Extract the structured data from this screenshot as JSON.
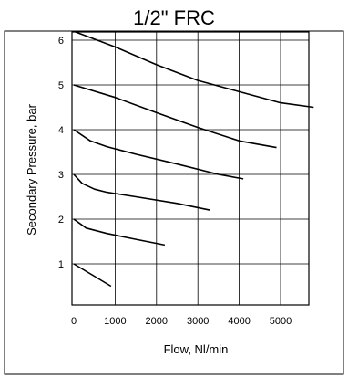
{
  "chart_data": {
    "type": "line",
    "title": "1/2\" FRC",
    "xlabel": "Flow, Nl/min",
    "ylabel": "Secondary Pressure, bar",
    "xlim": [
      0,
      6000
    ],
    "ylim": [
      0.5,
      6.2
    ],
    "x_ticks": [
      "0",
      "1000",
      "2000",
      "3000",
      "4000",
      "5000"
    ],
    "y_ticks": [
      "1",
      "2",
      "3",
      "4",
      "5",
      "6"
    ],
    "x_tick_values": [
      0,
      1000,
      2000,
      3000,
      4000,
      5000
    ],
    "y_tick_values": [
      1,
      2,
      3,
      4,
      5,
      6
    ],
    "grid": true,
    "series": [
      {
        "values": [
          [
            0,
            1.0
          ],
          [
            900,
            0.5
          ]
        ]
      },
      {
        "values": [
          [
            0,
            2.0
          ],
          [
            300,
            1.8
          ],
          [
            800,
            1.68
          ],
          [
            1500,
            1.55
          ],
          [
            2200,
            1.42
          ]
        ]
      },
      {
        "values": [
          [
            0,
            3.0
          ],
          [
            200,
            2.8
          ],
          [
            500,
            2.67
          ],
          [
            800,
            2.6
          ],
          [
            1500,
            2.5
          ],
          [
            2500,
            2.35
          ],
          [
            3300,
            2.2
          ]
        ]
      },
      {
        "values": [
          [
            0,
            4.0
          ],
          [
            400,
            3.75
          ],
          [
            800,
            3.62
          ],
          [
            1500,
            3.45
          ],
          [
            2500,
            3.23
          ],
          [
            3500,
            3.0
          ],
          [
            4100,
            2.9
          ]
        ]
      },
      {
        "values": [
          [
            0,
            5.0
          ],
          [
            1000,
            4.72
          ],
          [
            2000,
            4.38
          ],
          [
            3000,
            4.05
          ],
          [
            4000,
            3.75
          ],
          [
            4900,
            3.6
          ]
        ]
      },
      {
        "values": [
          [
            0,
            6.2
          ],
          [
            1000,
            5.85
          ],
          [
            2000,
            5.45
          ],
          [
            3000,
            5.1
          ],
          [
            4000,
            4.85
          ],
          [
            5000,
            4.6
          ],
          [
            5800,
            4.5
          ]
        ]
      }
    ]
  }
}
